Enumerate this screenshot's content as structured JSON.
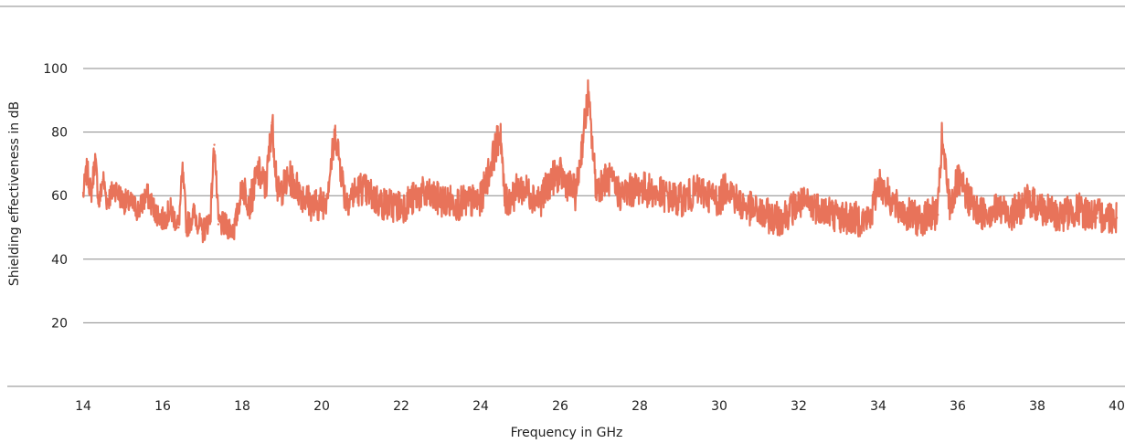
{
  "chart_data": {
    "type": "line",
    "title": "",
    "xlabel": "Frequency in GHz",
    "ylabel": "Shielding effectiveness in dB",
    "xlim": [
      14,
      40
    ],
    "ylim": [
      0,
      100
    ],
    "x_ticks": [
      14,
      16,
      18,
      20,
      22,
      24,
      26,
      28,
      30,
      32,
      34,
      36,
      38,
      40
    ],
    "y_ticks": [
      20,
      40,
      60,
      80,
      100
    ],
    "x_tick_labels": [
      "14",
      "16",
      "18",
      "20",
      "22",
      "24",
      "26",
      "28",
      "30",
      "32",
      "34",
      "36",
      "38",
      "40"
    ],
    "y_tick_labels": [
      "20",
      "40",
      "60",
      "80",
      "100"
    ],
    "grid": "horizontal",
    "legend": "none",
    "colors": {
      "series": "#e8735a",
      "grid": "#8a8a8a",
      "text": "#222222"
    },
    "series": [
      {
        "x": [
          14.0,
          14.1,
          14.2,
          14.3,
          14.4,
          14.5,
          14.6,
          14.8,
          15.0,
          15.2,
          15.4,
          15.6,
          15.8,
          16.0,
          16.2,
          16.4,
          16.5,
          16.6,
          16.8,
          17.0,
          17.2,
          17.3,
          17.4,
          17.6,
          17.8,
          17.85,
          18.0,
          18.2,
          18.4,
          18.6,
          18.75,
          18.9,
          19.2,
          19.5,
          19.8,
          20.1,
          20.35,
          20.6,
          21.0,
          21.5,
          22.0,
          22.5,
          23.0,
          23.5,
          24.0,
          24.5,
          24.6,
          25.0,
          25.5,
          25.8,
          26.0,
          26.4,
          26.7,
          26.9,
          27.2,
          27.5,
          28.0,
          28.5,
          29.0,
          29.5,
          30.0,
          30.2,
          30.5,
          31.0,
          31.5,
          32.0,
          32.5,
          33.0,
          33.5,
          33.8,
          34.0,
          34.5,
          35.0,
          35.5,
          35.6,
          35.8,
          36.0,
          36.5,
          37.0,
          37.4,
          37.8,
          38.0,
          38.5,
          39.0,
          39.5,
          40.0
        ],
        "y": [
          60,
          68,
          60,
          71,
          57,
          65,
          58,
          62,
          58,
          57,
          55,
          60,
          55,
          52,
          55,
          50,
          67,
          50,
          54,
          48,
          53,
          76,
          51,
          50,
          49,
          52,
          63,
          57,
          67,
          62,
          83,
          60,
          65,
          60,
          56,
          58,
          79,
          58,
          62,
          57,
          56,
          60,
          58,
          57,
          58,
          80,
          57,
          62,
          58,
          65,
          66,
          60,
          91,
          62,
          65,
          60,
          62,
          60,
          58,
          61,
          58,
          63,
          57,
          54,
          52,
          57,
          56,
          53,
          52,
          52,
          64,
          55,
          52,
          54,
          77,
          56,
          64,
          54,
          55,
          54,
          58,
          56,
          53,
          55,
          53,
          53
        ]
      }
    ]
  }
}
